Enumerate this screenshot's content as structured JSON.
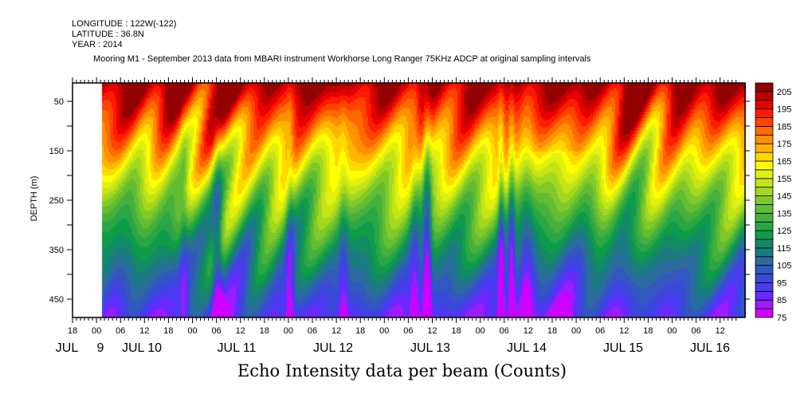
{
  "header": {
    "longitude": "LONGITUDE : 122W(-122)",
    "latitude": "LATITUDE : 36.8N",
    "year": "YEAR : 2014"
  },
  "chart_data": {
    "type": "heatmap",
    "title": "Mooring M1 - September 2013 data from MBARI instrument Workhorse Long Ranger 75KHz ADCP at original sampling intervals",
    "bottom_title": "Echo Intensity data per beam (Counts)",
    "ylabel": "DEPTH (m)",
    "xlabel": "",
    "y_range": [
      487,
      13
    ],
    "y_ticks": [
      "50",
      "150",
      "250",
      "350",
      "450"
    ],
    "x_tick_labels": [
      "18",
      "00",
      "06",
      "12",
      "18",
      "00",
      "06",
      "12",
      "18",
      "00",
      "06",
      "12",
      "18",
      "00",
      "06",
      "12",
      "18",
      "00",
      "06",
      "12",
      "18",
      "00",
      "06",
      "12",
      "18",
      "00",
      "06",
      "12"
    ],
    "x_day_labels": [
      "JUL",
      "9",
      "JUL 10",
      "JUL 11",
      "JUL 12",
      "JUL 13",
      "JUL 14",
      "JUL 15",
      "JUL 16"
    ],
    "colorbar": {
      "levels_min": 75,
      "levels_max": 210,
      "step": 5,
      "labels": [
        "205",
        "195",
        "185",
        "175",
        "165",
        "155",
        "145",
        "135",
        "125",
        "115",
        "105",
        "95",
        "85",
        "75"
      ],
      "colors": [
        "#d000ff",
        "#9a1cff",
        "#6a28ff",
        "#4a3af0",
        "#3a48d8",
        "#3258c0",
        "#2c6aa0",
        "#1a7b82",
        "#128a64",
        "#0e9c48",
        "#2aa646",
        "#46b03c",
        "#62bd32",
        "#80c928",
        "#a2d820",
        "#c4e414",
        "#e2f010",
        "#ffff00",
        "#ffd800",
        "#ffb400",
        "#ff9000",
        "#ff6a00",
        "#ff4400",
        "#ff1a00",
        "#e60000",
        "#be0000",
        "#920000"
      ]
    }
  }
}
